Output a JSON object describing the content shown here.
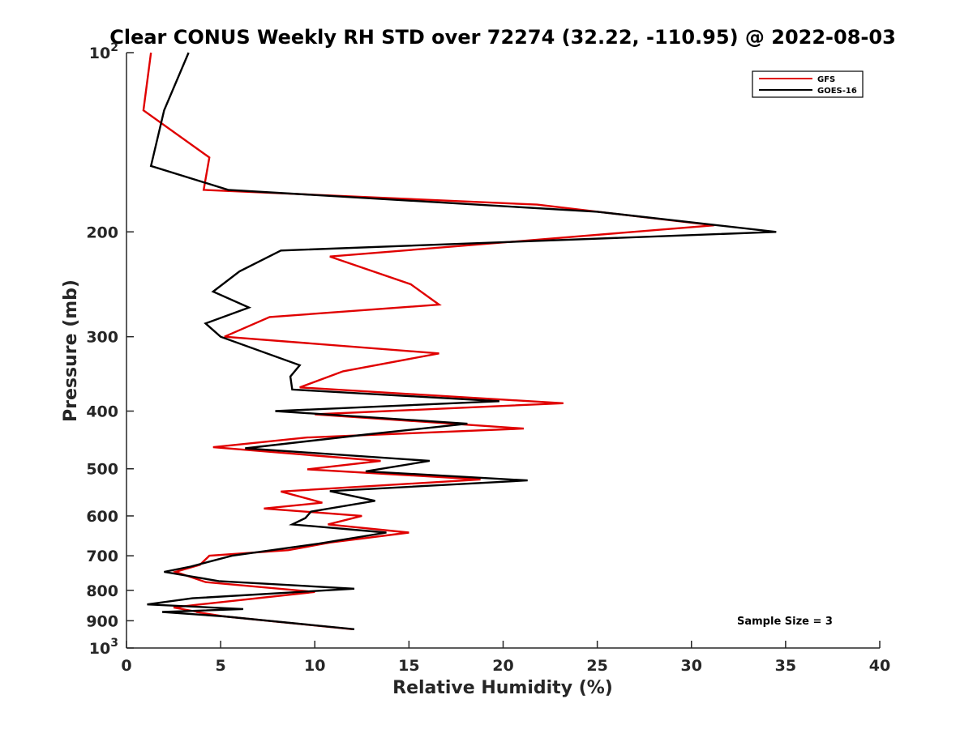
{
  "chart_data": {
    "type": "line",
    "title": "Clear CONUS Weekly RH STD over 72274 (32.22, -110.95) @ 2022-08-03",
    "xlabel": "Relative Humidity (%)",
    "ylabel": "Pressure (mb)",
    "xlim": [
      0,
      40
    ],
    "ylim": [
      100,
      1000
    ],
    "y_scale": "log",
    "y_reversed": true,
    "x_ticks": [
      "0",
      "5",
      "10",
      "15",
      "20",
      "25",
      "30",
      "35",
      "40"
    ],
    "y_ticks": [
      {
        "value": 100,
        "base": "10",
        "exp": "2"
      },
      {
        "value": 200,
        "label": "200"
      },
      {
        "value": 300,
        "label": "300"
      },
      {
        "value": 400,
        "label": "400"
      },
      {
        "value": 500,
        "label": "500"
      },
      {
        "value": 600,
        "label": "600"
      },
      {
        "value": 700,
        "label": "700"
      },
      {
        "value": 800,
        "label": "800"
      },
      {
        "value": 900,
        "label": "900"
      },
      {
        "value": 1000,
        "base": "10",
        "exp": "3"
      }
    ],
    "grid": false,
    "legend_position": "top-right",
    "annotation": "Sample Size = 3",
    "series": [
      {
        "name": "GFS",
        "color": "#e00000",
        "points": [
          [
            1.3,
            100
          ],
          [
            0.9,
            125
          ],
          [
            4.4,
            150
          ],
          [
            4.1,
            170
          ],
          [
            21.8,
            180
          ],
          [
            31.2,
            195
          ],
          [
            10.8,
            220
          ],
          [
            15.1,
            245
          ],
          [
            16.6,
            265
          ],
          [
            7.6,
            278
          ],
          [
            5.2,
            300
          ],
          [
            16.6,
            320
          ],
          [
            11.5,
            343
          ],
          [
            9.2,
            365
          ],
          [
            23.2,
            388
          ],
          [
            10.0,
            405
          ],
          [
            21.1,
            428
          ],
          [
            9.6,
            443
          ],
          [
            4.6,
            460
          ],
          [
            13.5,
            485
          ],
          [
            9.6,
            501
          ],
          [
            18.8,
            521
          ],
          [
            8.2,
            546
          ],
          [
            10.4,
            570
          ],
          [
            7.3,
            583
          ],
          [
            12.5,
            600
          ],
          [
            10.7,
            620
          ],
          [
            15.0,
            640
          ],
          [
            10.8,
            665
          ],
          [
            8.6,
            685
          ],
          [
            4.4,
            700
          ],
          [
            3.9,
            725
          ],
          [
            2.6,
            745
          ],
          [
            4.2,
            775
          ],
          [
            10.0,
            805
          ],
          [
            3.9,
            845
          ],
          [
            2.5,
            855
          ],
          [
            3.8,
            870
          ],
          [
            3.7,
            870
          ],
          [
            5.2,
            885
          ],
          [
            12.0,
            930
          ]
        ]
      },
      {
        "name": "GOES-16",
        "color": "#000000",
        "points": [
          [
            3.3,
            100
          ],
          [
            2.0,
            125
          ],
          [
            1.3,
            155
          ],
          [
            5.4,
            170
          ],
          [
            25.0,
            185
          ],
          [
            34.5,
            200
          ],
          [
            8.2,
            215
          ],
          [
            6.0,
            233
          ],
          [
            4.6,
            252
          ],
          [
            6.5,
            268
          ],
          [
            4.2,
            285
          ],
          [
            5.0,
            300
          ],
          [
            9.2,
            335
          ],
          [
            8.7,
            350
          ],
          [
            8.8,
            368
          ],
          [
            19.8,
            385
          ],
          [
            7.9,
            400
          ],
          [
            18.1,
            420
          ],
          [
            12.7,
            438
          ],
          [
            6.3,
            462
          ],
          [
            16.1,
            485
          ],
          [
            12.7,
            505
          ],
          [
            21.3,
            523
          ],
          [
            10.8,
            545
          ],
          [
            13.2,
            566
          ],
          [
            9.8,
            590
          ],
          [
            9.5,
            605
          ],
          [
            8.8,
            620
          ],
          [
            13.8,
            640
          ],
          [
            10.2,
            668
          ],
          [
            5.6,
            700
          ],
          [
            3.4,
            730
          ],
          [
            2.0,
            745
          ],
          [
            4.9,
            772
          ],
          [
            12.1,
            795
          ],
          [
            3.5,
            825
          ],
          [
            1.1,
            845
          ],
          [
            6.2,
            860
          ],
          [
            1.9,
            870
          ],
          [
            5.2,
            885
          ],
          [
            12.1,
            930
          ]
        ]
      }
    ]
  }
}
